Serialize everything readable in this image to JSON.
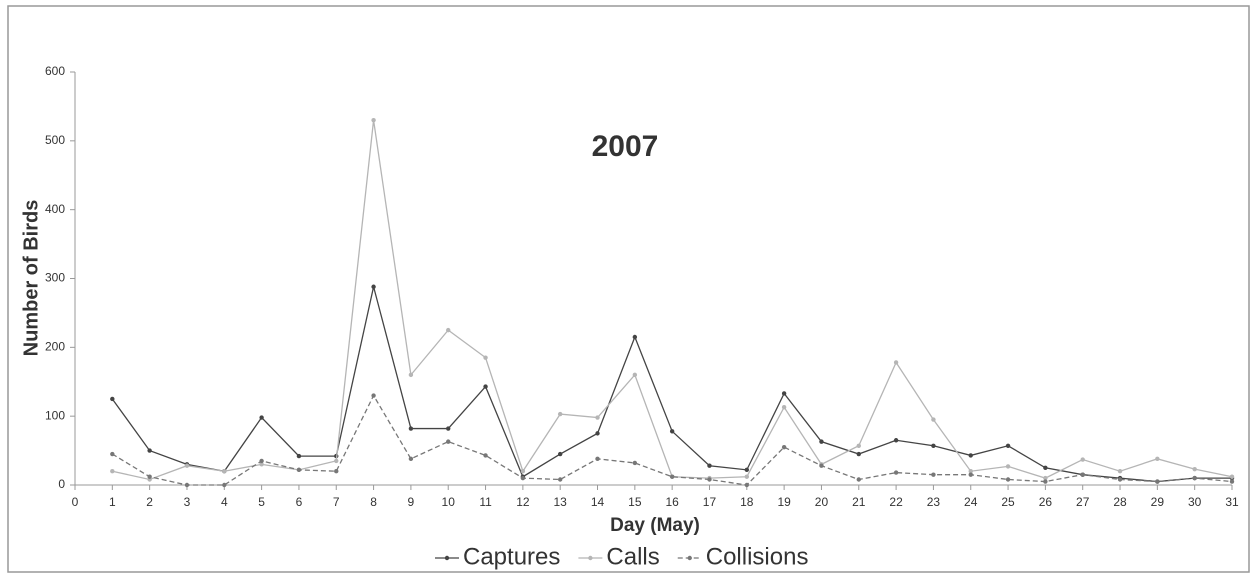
{
  "chart_data": {
    "type": "line",
    "title": "2007",
    "xlabel": "Day (May)",
    "ylabel": "Number of Birds",
    "x": [
      1,
      2,
      3,
      4,
      5,
      6,
      7,
      8,
      9,
      10,
      11,
      12,
      13,
      14,
      15,
      16,
      17,
      18,
      19,
      20,
      21,
      22,
      23,
      24,
      25,
      26,
      27,
      28,
      29,
      30,
      31
    ],
    "xlim": [
      0,
      31
    ],
    "xticks": [
      0,
      1,
      2,
      3,
      4,
      5,
      6,
      7,
      8,
      9,
      10,
      11,
      12,
      13,
      14,
      15,
      16,
      17,
      18,
      19,
      20,
      21,
      22,
      23,
      24,
      25,
      26,
      27,
      28,
      29,
      30,
      31
    ],
    "ylim": [
      0,
      600
    ],
    "yticks": [
      0,
      100,
      200,
      300,
      400,
      500,
      600
    ],
    "legend": "bottom",
    "series": [
      {
        "name": "Captures",
        "color": "#444444",
        "dash": false,
        "values": [
          125,
          50,
          30,
          20,
          98,
          42,
          42,
          288,
          82,
          82,
          143,
          12,
          45,
          75,
          215,
          78,
          28,
          22,
          133,
          63,
          45,
          65,
          57,
          43,
          57,
          25,
          15,
          10,
          5,
          10,
          10
        ]
      },
      {
        "name": "Calls",
        "color": "#b5b5b5",
        "dash": false,
        "values": [
          20,
          8,
          28,
          20,
          30,
          22,
          35,
          530,
          160,
          225,
          185,
          20,
          103,
          98,
          160,
          12,
          10,
          12,
          113,
          30,
          57,
          178,
          95,
          20,
          27,
          10,
          37,
          20,
          38,
          23,
          12
        ]
      },
      {
        "name": "Collisions",
        "color": "#777777",
        "dash": true,
        "values": [
          45,
          12,
          0,
          0,
          35,
          22,
          20,
          130,
          38,
          63,
          43,
          10,
          8,
          38,
          32,
          12,
          8,
          0,
          55,
          28,
          8,
          18,
          15,
          15,
          8,
          5,
          15,
          8,
          5,
          10,
          5
        ]
      }
    ]
  }
}
